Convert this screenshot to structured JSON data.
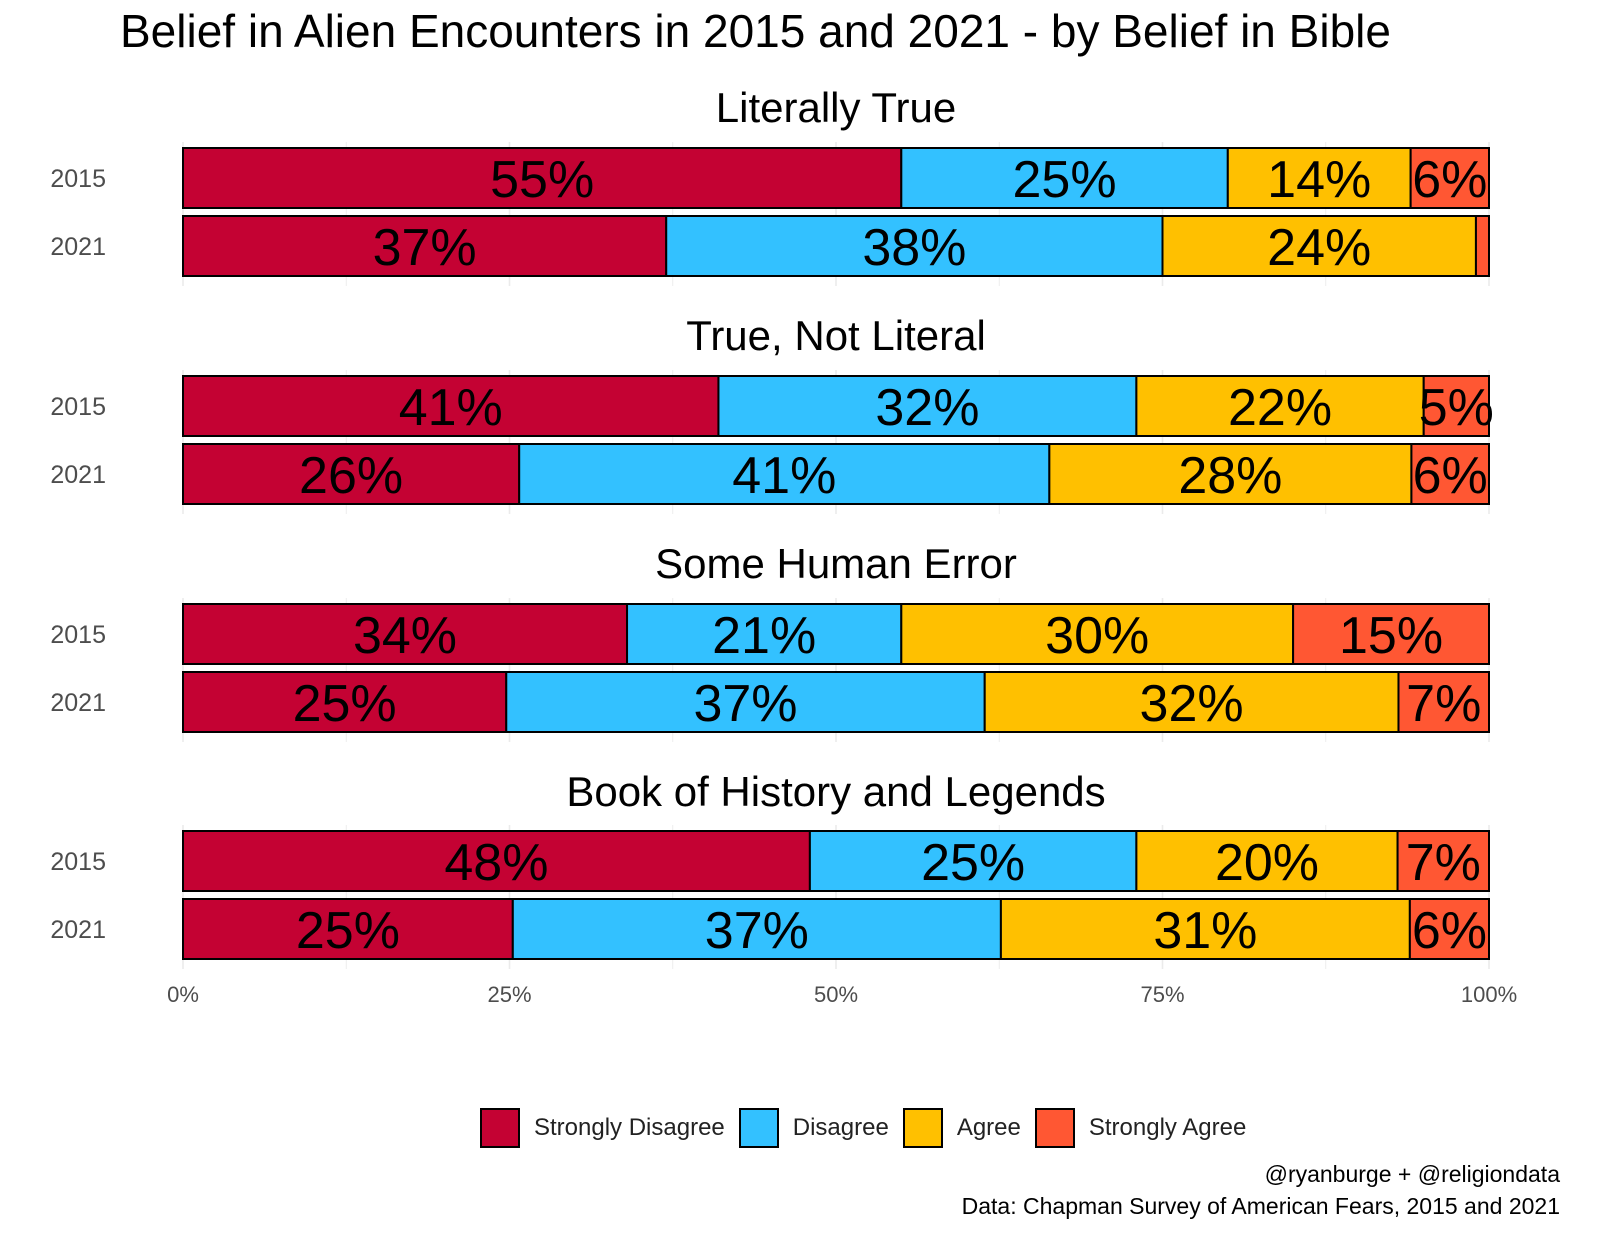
{
  "chart_data": {
    "type": "bar",
    "orientation": "horizontal",
    "stacked": true,
    "title": "Belief in Alien Encounters in 2015 and 2021 - by Belief in Bible",
    "x_ticks": [
      "0%",
      "25%",
      "50%",
      "75%",
      "100%"
    ],
    "xlim": [
      0,
      100
    ],
    "categories_legend": [
      "Strongly Disagree",
      "Disagree",
      "Agree",
      "Strongly Agree"
    ],
    "colors": [
      "#c40233",
      "#33c1ff",
      "#ffc000",
      "#ff5733"
    ],
    "legend_position": "bottom",
    "facets": [
      {
        "title": "Literally True",
        "rows": [
          {
            "year": "2015",
            "values": [
              55,
              25,
              14,
              6
            ],
            "labels": [
              "55%",
              "25%",
              "14%",
              "6%"
            ]
          },
          {
            "year": "2021",
            "values": [
              37,
              38,
              24,
              1
            ],
            "labels": [
              "37%",
              "38%",
              "24%",
              ""
            ]
          }
        ]
      },
      {
        "title": "True, Not Literal",
        "rows": [
          {
            "year": "2015",
            "values": [
              41,
              32,
              22,
              5
            ],
            "labels": [
              "41%",
              "32%",
              "22%",
              "5%"
            ]
          },
          {
            "year": "2021",
            "values": [
              26,
              41,
              28,
              6
            ],
            "labels": [
              "26%",
              "41%",
              "28%",
              "6%"
            ]
          }
        ]
      },
      {
        "title": "Some Human Error",
        "rows": [
          {
            "year": "2015",
            "values": [
              34,
              21,
              30,
              15
            ],
            "labels": [
              "34%",
              "21%",
              "30%",
              "15%"
            ]
          },
          {
            "year": "2021",
            "values": [
              25,
              37,
              32,
              7
            ],
            "labels": [
              "25%",
              "37%",
              "32%",
              "7%"
            ]
          }
        ]
      },
      {
        "title": "Book of History and Legends",
        "rows": [
          {
            "year": "2015",
            "values": [
              48,
              25,
              20,
              7
            ],
            "labels": [
              "48%",
              "25%",
              "20%",
              "7%"
            ]
          },
          {
            "year": "2021",
            "values": [
              25,
              37,
              31,
              6
            ],
            "labels": [
              "25%",
              "37%",
              "31%",
              "6%"
            ]
          }
        ]
      }
    ]
  },
  "caption": {
    "line1": "@ryanburge + @religiondata",
    "line2": "Data: Chapman Survey of American Fears, 2015 and 2021"
  }
}
